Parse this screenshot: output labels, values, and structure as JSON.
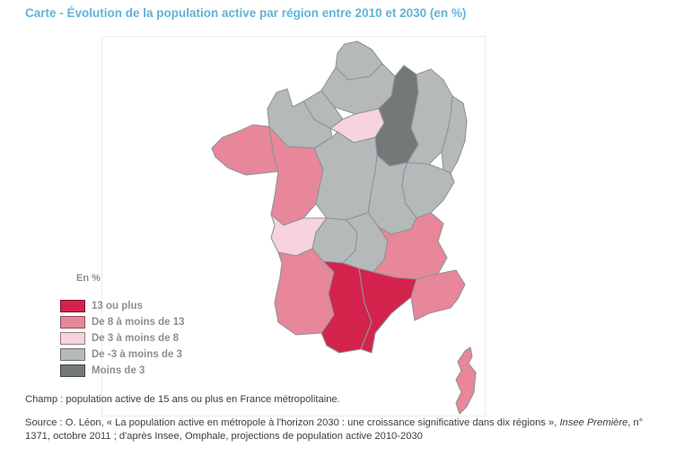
{
  "title": "Carte - Évolution de la population active par région entre 2010 et 2030 (en %)",
  "colors": {
    "title_blue": "#5fb3d8",
    "map_border": "#8e9498"
  },
  "legend": {
    "title": "En %",
    "items": [
      {
        "id": "cat-13plus",
        "label": "13 ou plus",
        "color": "#d4234d"
      },
      {
        "id": "cat-8to13",
        "label": "De 8 à moins de 13",
        "color": "#e78799"
      },
      {
        "id": "cat-3to8",
        "label": "De 3 à moins de 8",
        "color": "#f7d3dd"
      },
      {
        "id": "cat-m3to3",
        "label": "De -3 à moins de 3",
        "color": "#b6b9ba"
      },
      {
        "id": "cat-lessm3",
        "label": "Moins de 3",
        "color": "#747879"
      }
    ]
  },
  "map": {
    "regions": [
      {
        "id": "nord-pas-de-calais",
        "name": "Nord-Pas-de-Calais",
        "category": "cat-m3to3"
      },
      {
        "id": "picardie",
        "name": "Picardie",
        "category": "cat-m3to3"
      },
      {
        "id": "haute-normandie",
        "name": "Haute-Normandie",
        "category": "cat-m3to3"
      },
      {
        "id": "basse-normandie",
        "name": "Basse-Normandie",
        "category": "cat-m3to3"
      },
      {
        "id": "ile-de-france",
        "name": "Île-de-France",
        "category": "cat-3to8"
      },
      {
        "id": "champagne-ardenne",
        "name": "Champagne-Ardenne",
        "category": "cat-lessm3"
      },
      {
        "id": "lorraine",
        "name": "Lorraine",
        "category": "cat-m3to3"
      },
      {
        "id": "alsace",
        "name": "Alsace",
        "category": "cat-m3to3"
      },
      {
        "id": "franche-comte",
        "name": "Franche-Comté",
        "category": "cat-m3to3"
      },
      {
        "id": "bourgogne",
        "name": "Bourgogne",
        "category": "cat-m3to3"
      },
      {
        "id": "centre",
        "name": "Centre",
        "category": "cat-m3to3"
      },
      {
        "id": "bretagne",
        "name": "Bretagne",
        "category": "cat-8to13"
      },
      {
        "id": "pays-de-la-loire",
        "name": "Pays de la Loire",
        "category": "cat-8to13"
      },
      {
        "id": "poitou-charentes",
        "name": "Poitou-Charentes",
        "category": "cat-3to8"
      },
      {
        "id": "limousin",
        "name": "Limousin",
        "category": "cat-m3to3"
      },
      {
        "id": "auvergne",
        "name": "Auvergne",
        "category": "cat-m3to3"
      },
      {
        "id": "rhone-alpes",
        "name": "Rhône-Alpes",
        "category": "cat-8to13"
      },
      {
        "id": "aquitaine",
        "name": "Aquitaine",
        "category": "cat-8to13"
      },
      {
        "id": "midi-pyrenees",
        "name": "Midi-Pyrénées",
        "category": "cat-13plus"
      },
      {
        "id": "languedoc-roussillon",
        "name": "Languedoc-Roussillon",
        "category": "cat-13plus"
      },
      {
        "id": "provence-alpes-cote-d-azur",
        "name": "Provence-Alpes-Côte d'Azur",
        "category": "cat-8to13"
      },
      {
        "id": "corse",
        "name": "Corse",
        "category": "cat-8to13"
      }
    ]
  },
  "footer": {
    "champ": "Champ : population active de 15 ans ou plus en France métropolitaine.",
    "source_prefix": "Source : O. Léon, « La population active en métropole à l'horizon 2030 : une croissance significative dans dix régions », ",
    "source_italic": "Insee Première",
    "source_suffix": ", n° 1371, octobre 2011 ; d'après Insee, Omphale, projections de population active 2010-2030"
  }
}
